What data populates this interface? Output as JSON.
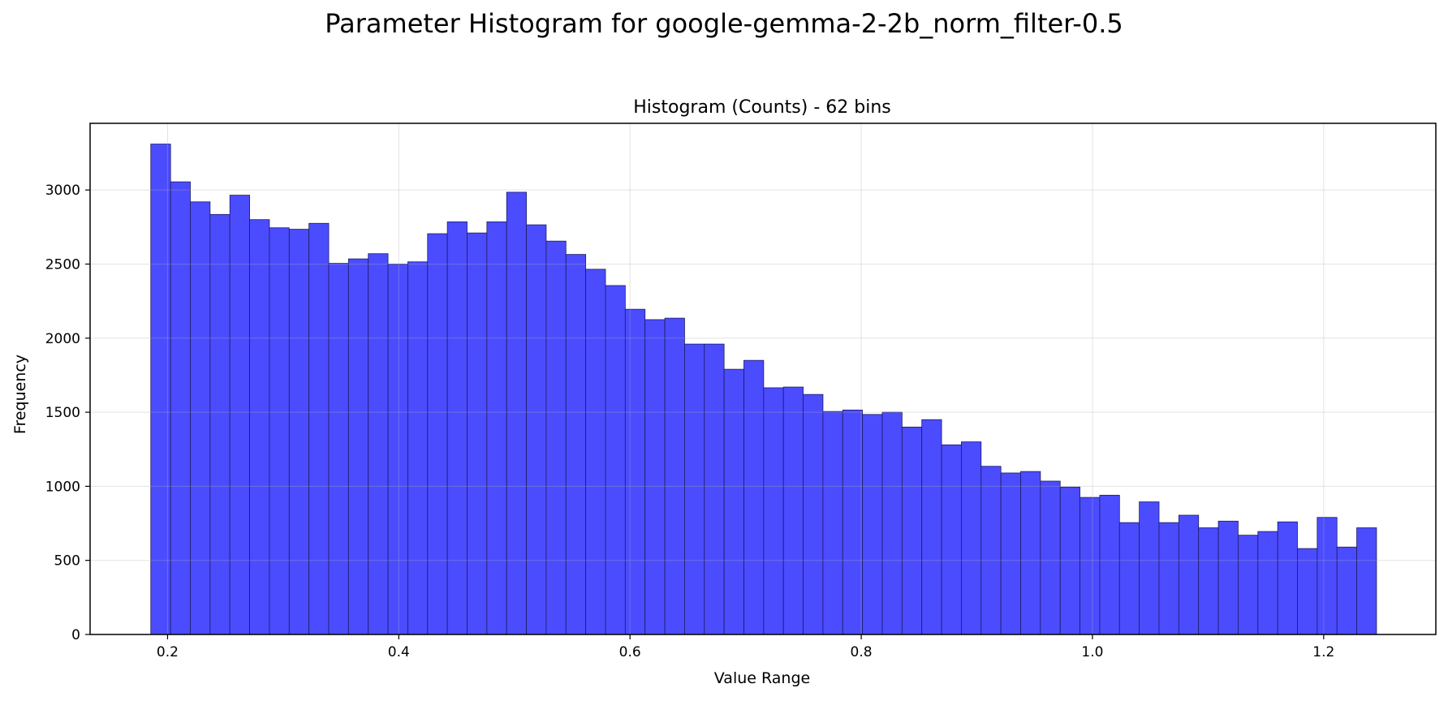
{
  "figure": {
    "suptitle": "Parameter Histogram for google-gemma-2-2b_norm_filter-0.5"
  },
  "chart_data": {
    "type": "bar",
    "title": "Histogram (Counts) - 62 bins",
    "xlabel": "Value Range",
    "ylabel": "Frequency",
    "xlim": [
      0.133,
      1.297
    ],
    "ylim": [
      0,
      3450
    ],
    "x_ticks": [
      0.2,
      0.4,
      0.6,
      0.8,
      1.0,
      1.2
    ],
    "x_tick_labels": [
      "0.2",
      "0.4",
      "0.6",
      "0.8",
      "1.0",
      "1.2"
    ],
    "y_ticks": [
      0,
      500,
      1000,
      1500,
      2000,
      2500,
      3000
    ],
    "y_tick_labels": [
      "0",
      "500",
      "1000",
      "1500",
      "2000",
      "2500",
      "3000"
    ],
    "grid": true,
    "bar_color": "#4c4cff",
    "edge_color": "#1a1a66",
    "bin_start": 0.1855,
    "bin_width": 0.0171,
    "values": [
      3310,
      3055,
      2920,
      2835,
      2965,
      2800,
      2745,
      2735,
      2775,
      2505,
      2535,
      2570,
      2500,
      2515,
      2705,
      2785,
      2710,
      2785,
      2985,
      2765,
      2655,
      2565,
      2465,
      2355,
      2195,
      2125,
      2135,
      1960,
      1960,
      1790,
      1850,
      1665,
      1670,
      1620,
      1505,
      1515,
      1485,
      1500,
      1400,
      1450,
      1280,
      1300,
      1135,
      1090,
      1100,
      1035,
      995,
      925,
      940,
      755,
      895,
      755,
      805,
      720,
      765,
      670,
      695,
      760,
      580,
      790,
      590,
      720
    ]
  }
}
